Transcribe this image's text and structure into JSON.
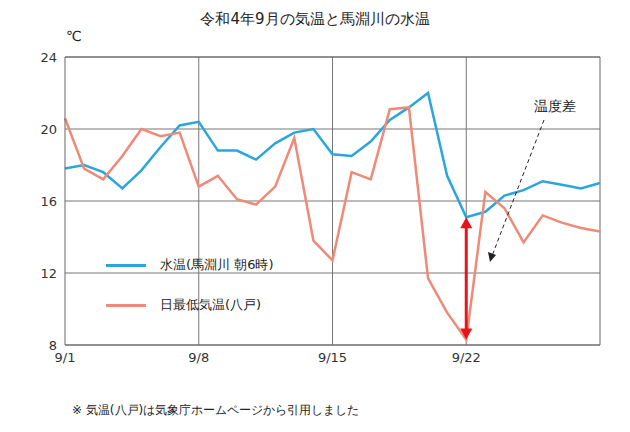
{
  "chart_data": {
    "type": "line",
    "title": "令和4年9月の気温と馬淵川の水温",
    "y_label": "℃",
    "categories": [
      "9/1",
      null,
      null,
      null,
      null,
      null,
      null,
      "9/8",
      null,
      null,
      null,
      null,
      null,
      null,
      "9/15",
      null,
      null,
      null,
      null,
      null,
      null,
      "9/22",
      null,
      null,
      null,
      null,
      null,
      null,
      null
    ],
    "series": [
      {
        "name": "水温(馬淵川 朝6時)",
        "color": "#2aa6dd",
        "values": [
          17.8,
          18.0,
          17.6,
          16.7,
          17.7,
          19.0,
          20.2,
          20.4,
          18.8,
          18.8,
          18.3,
          19.2,
          19.8,
          20.0,
          18.6,
          18.5,
          19.3,
          20.5,
          21.2,
          22.0,
          17.4,
          15.1,
          15.4,
          16.3,
          16.6,
          17.1,
          16.9,
          16.7,
          17.0
        ]
      },
      {
        "name": "日最低気温(八戸)",
        "color": "#ee8a77",
        "values": [
          20.6,
          17.8,
          17.2,
          18.5,
          20.0,
          19.6,
          19.8,
          16.8,
          17.4,
          16.1,
          15.8,
          16.8,
          19.5,
          13.8,
          12.7,
          17.6,
          17.2,
          21.1,
          21.2,
          11.7,
          9.8,
          8.3,
          16.5,
          15.6,
          13.7,
          15.2,
          14.8,
          14.5,
          14.3
        ]
      }
    ],
    "ylim": [
      8,
      24
    ],
    "yticks": [
      8,
      12,
      16,
      20,
      24
    ],
    "grid": true,
    "legend": "left",
    "annotation": {
      "text": "温度差",
      "at": "9/22"
    },
    "note": "※ 気温(八戸)は気象庁ホームページから引用しました"
  }
}
